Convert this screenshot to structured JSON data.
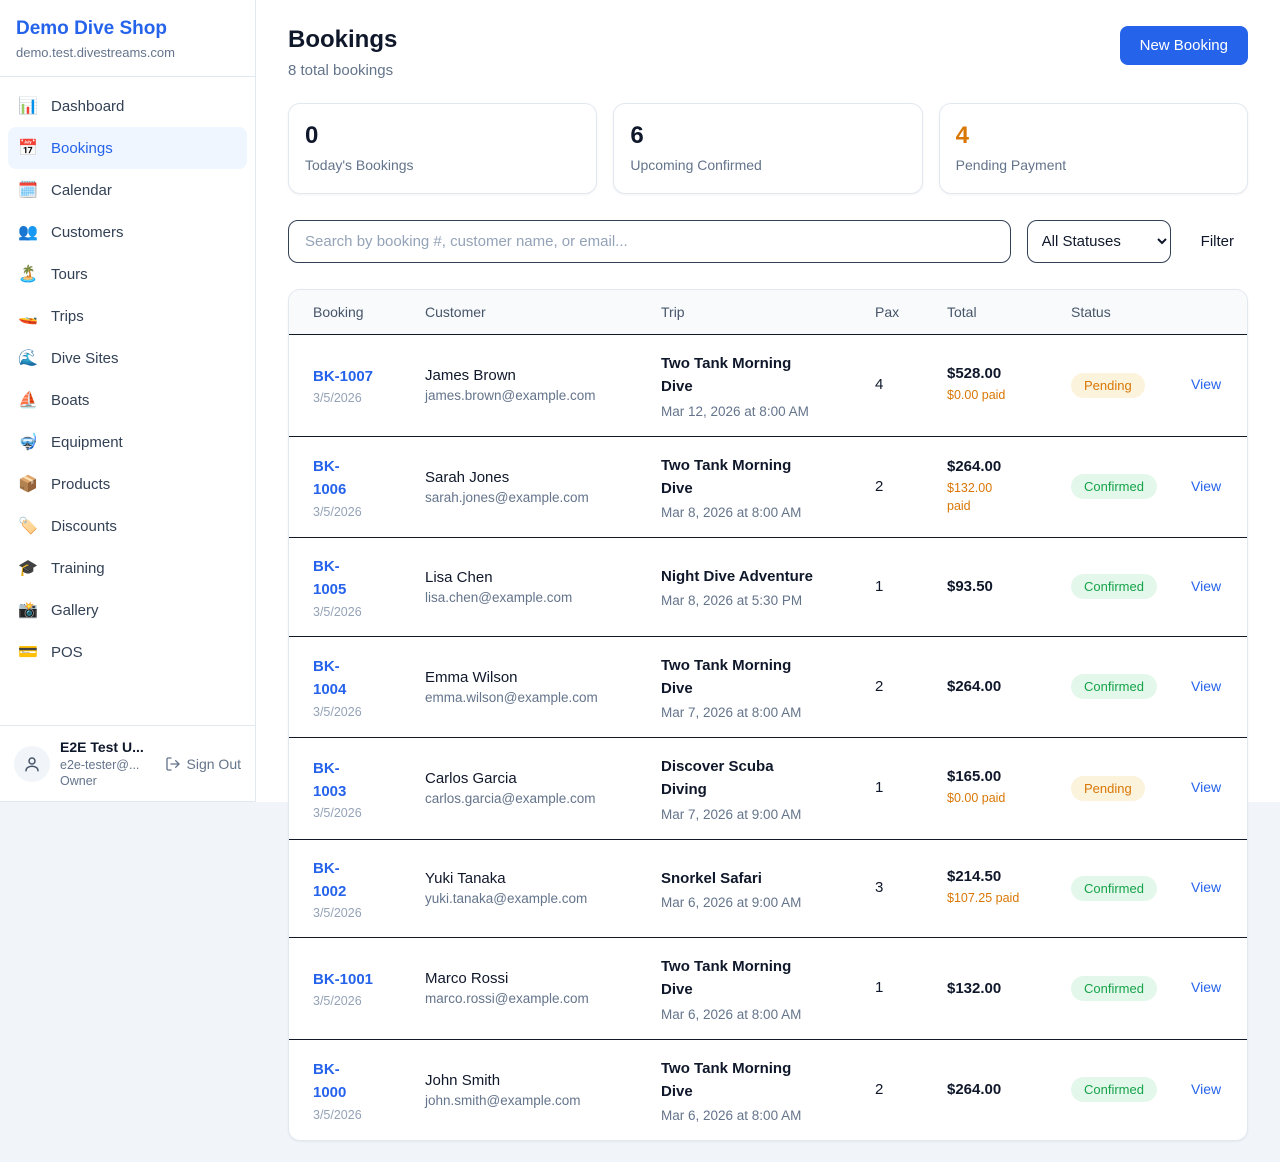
{
  "sidebar": {
    "brand": {
      "name": "Demo Dive Shop",
      "domain": "demo.test.divestreams.com"
    },
    "items": [
      {
        "key": "dashboard",
        "label": "Dashboard",
        "icon_name": "bar-chart-icon",
        "glyph": "📊",
        "active": false
      },
      {
        "key": "bookings",
        "label": "Bookings",
        "icon_name": "calendar-date-icon",
        "glyph": "📅",
        "active": true
      },
      {
        "key": "calendar",
        "label": "Calendar",
        "icon_name": "spiral-calendar-icon",
        "glyph": "🗓️",
        "active": false
      },
      {
        "key": "customers",
        "label": "Customers",
        "icon_name": "people-icon",
        "glyph": "👥",
        "active": false
      },
      {
        "key": "tours",
        "label": "Tours",
        "icon_name": "island-icon",
        "glyph": "🏝️",
        "active": false
      },
      {
        "key": "trips",
        "label": "Trips",
        "icon_name": "speedboat-icon",
        "glyph": "🚤",
        "active": false
      },
      {
        "key": "dive-sites",
        "label": "Dive Sites",
        "icon_name": "wave-icon",
        "glyph": "🌊",
        "active": false
      },
      {
        "key": "boats",
        "label": "Boats",
        "icon_name": "sailboat-icon",
        "glyph": "⛵",
        "active": false
      },
      {
        "key": "equipment",
        "label": "Equipment",
        "icon_name": "diving-mask-icon",
        "glyph": "🤿",
        "active": false
      },
      {
        "key": "products",
        "label": "Products",
        "icon_name": "package-icon",
        "glyph": "📦",
        "active": false
      },
      {
        "key": "discounts",
        "label": "Discounts",
        "icon_name": "tag-icon",
        "glyph": "🏷️",
        "active": false
      },
      {
        "key": "training",
        "label": "Training",
        "icon_name": "graduation-cap-icon",
        "glyph": "🎓",
        "active": false
      },
      {
        "key": "gallery",
        "label": "Gallery",
        "icon_name": "camera-flash-icon",
        "glyph": "📸",
        "active": false
      },
      {
        "key": "pos",
        "label": "POS",
        "icon_name": "credit-card-icon",
        "glyph": "💳",
        "active": false
      }
    ],
    "user": {
      "name": "E2E Test U...",
      "email": "e2e-tester@...",
      "role": "Owner",
      "sign_out_label": "Sign Out"
    }
  },
  "header": {
    "title": "Bookings",
    "subtitle": "8 total bookings",
    "new_booking_label": "New Booking"
  },
  "stats": [
    {
      "value": "0",
      "label": "Today's Bookings",
      "accent": false
    },
    {
      "value": "6",
      "label": "Upcoming Confirmed",
      "accent": false
    },
    {
      "value": "4",
      "label": "Pending Payment",
      "accent": true
    }
  ],
  "toolbar": {
    "search_placeholder": "Search by booking #, customer name, or email...",
    "status_filter_value": "All Statuses",
    "filter_label": "Filter"
  },
  "table": {
    "columns": [
      "Booking",
      "Customer",
      "Trip",
      "Pax",
      "Total",
      "Status",
      ""
    ],
    "rows": [
      {
        "id": "BK-1007",
        "date": "3/5/2026",
        "customer": "James Brown",
        "email": "james.brown@example.com",
        "trip": "Two Tank Morning\nDive",
        "trip_datetime": "Mar 12, 2026 at 8:00 AM",
        "pax": "4",
        "total": "$528.00",
        "paid": "$0.00 paid",
        "status": "Pending",
        "view": "View"
      },
      {
        "id": "BK-\n1006",
        "date": "3/5/2026",
        "customer": "Sarah Jones",
        "email": "sarah.jones@example.com",
        "trip": "Two Tank Morning\nDive",
        "trip_datetime": "Mar 8, 2026 at 8:00 AM",
        "pax": "2",
        "total": "$264.00",
        "paid": "$132.00\npaid",
        "status": "Confirmed",
        "view": "View"
      },
      {
        "id": "BK-\n1005",
        "date": "3/5/2026",
        "customer": "Lisa Chen",
        "email": "lisa.chen@example.com",
        "trip": "Night Dive Adventure",
        "trip_datetime": "Mar 8, 2026 at 5:30 PM",
        "pax": "1",
        "total": "$93.50",
        "paid": null,
        "status": "Confirmed",
        "view": "View"
      },
      {
        "id": "BK-\n1004",
        "date": "3/5/2026",
        "customer": "Emma Wilson",
        "email": "emma.wilson@example.com",
        "trip": "Two Tank Morning\nDive",
        "trip_datetime": "Mar 7, 2026 at 8:00 AM",
        "pax": "2",
        "total": "$264.00",
        "paid": null,
        "status": "Confirmed",
        "view": "View"
      },
      {
        "id": "BK-\n1003",
        "date": "3/5/2026",
        "customer": "Carlos Garcia",
        "email": "carlos.garcia@example.com",
        "trip": "Discover Scuba\nDiving",
        "trip_datetime": "Mar 7, 2026 at 9:00 AM",
        "pax": "1",
        "total": "$165.00",
        "paid": "$0.00 paid",
        "status": "Pending",
        "view": "View"
      },
      {
        "id": "BK-\n1002",
        "date": "3/5/2026",
        "customer": "Yuki Tanaka",
        "email": "yuki.tanaka@example.com",
        "trip": "Snorkel Safari",
        "trip_datetime": "Mar 6, 2026 at 9:00 AM",
        "pax": "3",
        "total": "$214.50",
        "paid": "$107.25 paid",
        "status": "Confirmed",
        "view": "View"
      },
      {
        "id": "BK-1001",
        "date": "3/5/2026",
        "customer": "Marco Rossi",
        "email": "marco.rossi@example.com",
        "trip": "Two Tank Morning\nDive",
        "trip_datetime": "Mar 6, 2026 at 8:00 AM",
        "pax": "1",
        "total": "$132.00",
        "paid": null,
        "status": "Confirmed",
        "view": "View"
      },
      {
        "id": "BK-\n1000",
        "date": "3/5/2026",
        "customer": "John Smith",
        "email": "john.smith@example.com",
        "trip": "Two Tank Morning\nDive",
        "trip_datetime": "Mar 6, 2026 at 8:00 AM",
        "pax": "2",
        "total": "$264.00",
        "paid": null,
        "status": "Confirmed",
        "view": "View"
      }
    ]
  },
  "colors": {
    "brand_blue": "#2563eb",
    "accent_orange": "#d97706",
    "pending_bg": "#fcf3dd",
    "pending_fg": "#d97706",
    "confirmed_bg": "#e4f7eb",
    "confirmed_fg": "#16a34a",
    "row_divider": "#111827",
    "card_border": "#e2e8f0",
    "page_bg": "#f1f5f9"
  }
}
